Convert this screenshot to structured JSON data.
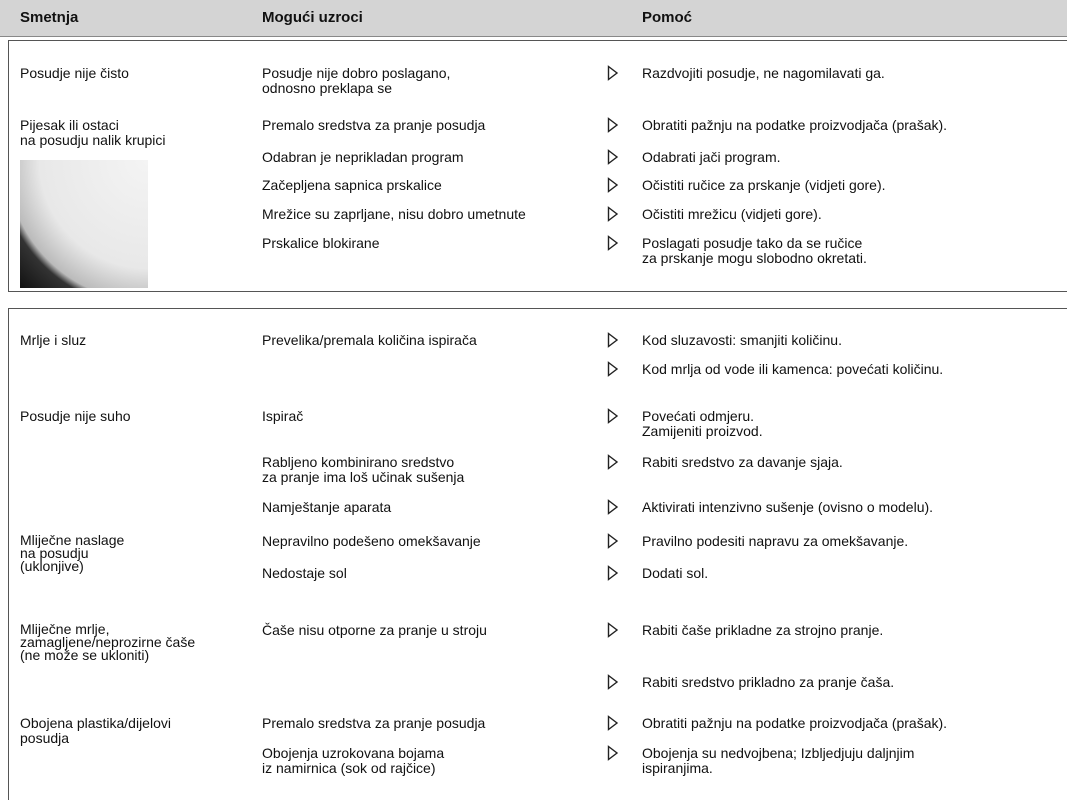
{
  "header": {
    "problem": "Smetnja",
    "cause": "Mogući uzroci",
    "remedy": "Pomoć"
  },
  "sections": [
    {
      "rows": [
        {
          "problem": "Posudje nije čisto",
          "cause": "Posudje nije dobro poslagano,\nodnosno preklapa se",
          "remedy": "Razdvojiti posudje, ne nagomilavati ga."
        },
        {
          "problem": "Pijesak ili ostaci\nna posudju nalik krupici",
          "cause": "Premalo sredstva za pranje posudja",
          "remedy": "Obratiti pažnju na podatke proizvodjača (prašak)."
        },
        {
          "cause": "Odabran je neprikladan program",
          "remedy": "Odabrati jači program."
        },
        {
          "cause": "Začepljena sapnica prskalice",
          "remedy": "Očistiti ručice za prskanje (vidjeti gore)."
        },
        {
          "cause": "Mrežice su zaprljane, nisu dobro umetnute",
          "remedy": "Očistiti mrežicu (vidjeti gore)."
        },
        {
          "cause": "Prskalice blokirane",
          "remedy": "Poslagati posudje tako da se ručice\nza prskanje mogu slobodno okretati."
        }
      ]
    },
    {
      "rows": [
        {
          "problem": "Mrlje i sluz",
          "cause": "Prevelika/premala količina ispirača",
          "remedy": "Kod sluzavosti: smanjiti količinu."
        },
        {
          "remedy": "Kod mrlja od vode ili kamenca: povećati količinu."
        },
        {
          "problem": "Posudje nije suho",
          "cause": "Ispirač",
          "remedy": "Povećati odmjeru.\nZamijeniti proizvod."
        },
        {
          "cause": "Rabljeno kombinirano sredstvo\nza pranje ima loš učinak sušenja",
          "remedy": "Rabiti sredstvo za davanje sjaja."
        },
        {
          "cause": "Namještanje aparata",
          "remedy": "Aktivirati intenzivno sušenje (ovisno o modelu)."
        },
        {
          "problem": "Mliječne naslage\nna posudju\n(uklonjive)",
          "cause": "Nepravilno podešeno omekšavanje",
          "remedy": "Pravilno podesiti napravu za omekšavanje."
        },
        {
          "cause": "Nedostaje sol",
          "remedy": "Dodati sol."
        },
        {
          "problem": "Mliječne mrlje,\nzamagljene/neprozirne čaše\n(ne može se ukloniti)",
          "cause": "Čaše nisu otporne za pranje u stroju",
          "remedy": "Rabiti čaše prikladne za strojno pranje."
        },
        {
          "remedy": "Rabiti sredstvo prikladno za pranje čaša."
        },
        {
          "problem": "Obojena plastika/dijelovi\nposudja",
          "cause": "Premalo sredstva za pranje posudja",
          "remedy": "Obratiti pažnju na podatke proizvodjača (prašak)."
        },
        {
          "cause": "Obojenja uzrokovana bojama\niz namirnica (sok od rajčice)",
          "remedy": "Obojenja su nedvojbena; Izbljedjuju daljnjim\nispiranjima."
        }
      ]
    }
  ]
}
